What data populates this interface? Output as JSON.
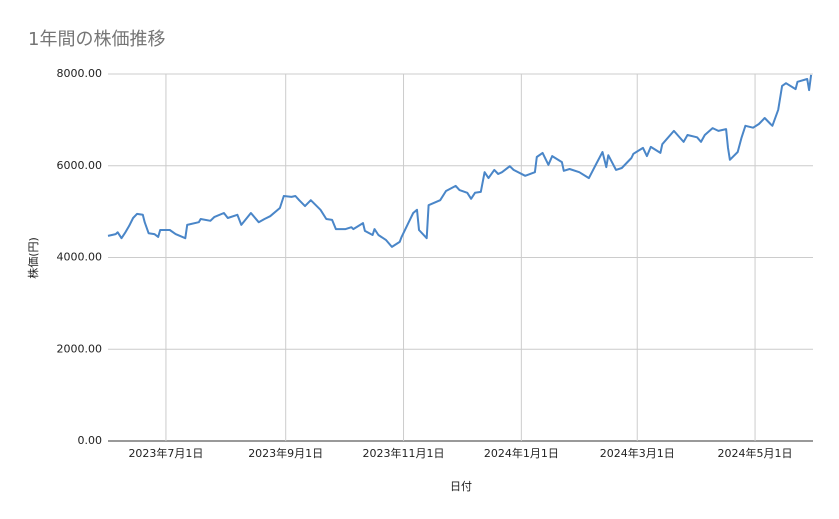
{
  "chart_data": {
    "type": "line",
    "title": "1年間の株価推移",
    "x_label": "日付",
    "y_label": "株価(円)",
    "color": "#4a86c8",
    "grid": true,
    "x": [
      "2023-06-01",
      "2023-06-05",
      "2023-06-06",
      "2023-06-08",
      "2023-06-10",
      "2023-06-12",
      "2023-06-14",
      "2023-06-16",
      "2023-06-19",
      "2023-06-20",
      "2023-06-22",
      "2023-06-25",
      "2023-06-27",
      "2023-06-28",
      "2023-07-03",
      "2023-07-06",
      "2023-07-11",
      "2023-07-12",
      "2023-07-18",
      "2023-07-19",
      "2023-07-24",
      "2023-07-26",
      "2023-07-31",
      "2023-08-02",
      "2023-08-07",
      "2023-08-09",
      "2023-08-14",
      "2023-08-18",
      "2023-08-21",
      "2023-08-24",
      "2023-08-29",
      "2023-08-31",
      "2023-09-04",
      "2023-09-06",
      "2023-09-08",
      "2023-09-11",
      "2023-09-14",
      "2023-09-19",
      "2023-09-22",
      "2023-09-25",
      "2023-09-27",
      "2023-10-02",
      "2023-10-05",
      "2023-10-06",
      "2023-10-11",
      "2023-10-12",
      "2023-10-16",
      "2023-10-17",
      "2023-10-19",
      "2023-10-23",
      "2023-10-26",
      "2023-10-30",
      "2023-10-31",
      "2023-11-03",
      "2023-11-06",
      "2023-11-08",
      "2023-11-09",
      "2023-11-13",
      "2023-11-14",
      "2023-11-20",
      "2023-11-23",
      "2023-11-28",
      "2023-11-30",
      "2023-12-04",
      "2023-12-06",
      "2023-12-08",
      "2023-12-11",
      "2023-12-13",
      "2023-12-15",
      "2023-12-18",
      "2023-12-20",
      "2023-12-22",
      "2023-12-26",
      "2023-12-28",
      "2024-01-03",
      "2024-01-08",
      "2024-01-09",
      "2024-01-12",
      "2024-01-15",
      "2024-01-17",
      "2024-01-22",
      "2024-01-23",
      "2024-01-26",
      "2024-01-31",
      "2024-02-05",
      "2024-02-09",
      "2024-02-12",
      "2024-02-14",
      "2024-02-15",
      "2024-02-19",
      "2024-02-22",
      "2024-02-27",
      "2024-02-28",
      "2024-03-04",
      "2024-03-06",
      "2024-03-08",
      "2024-03-13",
      "2024-03-14",
      "2024-03-20",
      "2024-03-25",
      "2024-03-27",
      "2024-04-01",
      "2024-04-03",
      "2024-04-05",
      "2024-04-09",
      "2024-04-12",
      "2024-04-16",
      "2024-04-17",
      "2024-04-18",
      "2024-04-22",
      "2024-04-24",
      "2024-04-26",
      "2024-04-30",
      "2024-05-03",
      "2024-05-06",
      "2024-05-09",
      "2024-05-10",
      "2024-05-13",
      "2024-05-15",
      "2024-05-17",
      "2024-05-22",
      "2024-05-23",
      "2024-05-28",
      "2024-05-29",
      "2024-05-30"
    ],
    "values": [
      4470,
      4510,
      4550,
      4420,
      4550,
      4690,
      4860,
      4950,
      4930,
      4770,
      4530,
      4510,
      4450,
      4600,
      4600,
      4510,
      4420,
      4710,
      4770,
      4840,
      4800,
      4880,
      4970,
      4860,
      4930,
      4710,
      4970,
      4770,
      4840,
      4900,
      5080,
      5340,
      5320,
      5340,
      5250,
      5120,
      5250,
      5040,
      4840,
      4820,
      4620,
      4620,
      4660,
      4620,
      4750,
      4580,
      4490,
      4620,
      4490,
      4380,
      4230,
      4340,
      4450,
      4710,
      4970,
      5040,
      4600,
      4420,
      5140,
      5250,
      5450,
      5560,
      5470,
      5410,
      5280,
      5410,
      5430,
      5860,
      5730,
      5910,
      5820,
      5860,
      5990,
      5910,
      5780,
      5860,
      6190,
      6280,
      6020,
      6210,
      6080,
      5890,
      5930,
      5860,
      5730,
      6060,
      6300,
      5970,
      6230,
      5910,
      5950,
      6170,
      6260,
      6390,
      6210,
      6410,
      6280,
      6470,
      6760,
      6520,
      6670,
      6620,
      6520,
      6670,
      6820,
      6760,
      6800,
      6390,
      6130,
      6300,
      6610,
      6870,
      6830,
      6910,
      7040,
      6910,
      6870,
      7220,
      7740,
      7800,
      7670,
      7830,
      7890,
      7650,
      7980
    ],
    "xlim": [
      "2023-06-01",
      "2024-05-31"
    ],
    "xticks": [
      {
        "value": "2023-07-01",
        "label": "2023年7月1日"
      },
      {
        "value": "2023-09-01",
        "label": "2023年9月1日"
      },
      {
        "value": "2023-11-01",
        "label": "2023年11月1日"
      },
      {
        "value": "2024-01-01",
        "label": "2024年1月1日"
      },
      {
        "value": "2024-03-01",
        "label": "2024年3月1日"
      },
      {
        "value": "2024-05-01",
        "label": "2024年5月1日"
      }
    ],
    "ylim": [
      0,
      8000
    ],
    "yticks": [
      {
        "value": 0,
        "label": "0.00"
      },
      {
        "value": 2000,
        "label": "2000.00"
      },
      {
        "value": 4000,
        "label": "4000.00"
      },
      {
        "value": 6000,
        "label": "6000.00"
      },
      {
        "value": 8000,
        "label": "8000.00"
      }
    ]
  }
}
